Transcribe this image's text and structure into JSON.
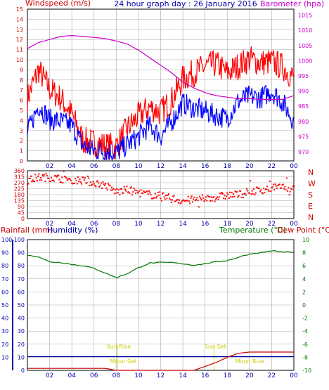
{
  "colors": {
    "wind": "#ff0000",
    "gust": "#ff0000",
    "windavg": "#0000ff",
    "baro": "#cc00cc",
    "dir": "#ff0000",
    "rain": "#cc0000",
    "humidity": "#0000aa",
    "temp": "#007700",
    "dew": "#cc0000",
    "grid": "#aaaaaa",
    "sunline": "#cccc00",
    "sunlabel": "#cccc00"
  },
  "chart_data": [
    {
      "type": "line",
      "title": "24 hour graph day : 26 January 2016",
      "ylabel": "Windspeed (m/s)",
      "y2label": "Barometer (hpa)",
      "ylim": [
        0,
        15
      ],
      "y2lim": [
        967,
        1017
      ],
      "y_ticks": [
        "0",
        "1",
        "2",
        "3",
        "4",
        "5",
        "6",
        "7",
        "8",
        "9",
        "10",
        "11",
        "12",
        "13",
        "14",
        "15"
      ],
      "y2_ticks": [
        "970",
        "975",
        "980",
        "985",
        "990",
        "995",
        "1000",
        "1005",
        "1010",
        "1015"
      ],
      "x_ticks": [
        "02",
        "04",
        "06",
        "08",
        "10",
        "12",
        "14",
        "16",
        "18",
        "20",
        "22",
        "00"
      ],
      "x_hours": [
        0,
        1,
        2,
        3,
        4,
        5,
        6,
        7,
        8,
        9,
        10,
        11,
        12,
        13,
        14,
        15,
        16,
        17,
        18,
        19,
        20,
        21,
        22,
        23,
        24
      ],
      "series": [
        {
          "name": "Gust",
          "axis": "left",
          "values": [
            6.2,
            9.0,
            7.1,
            6.2,
            4.6,
            2.0,
            1.8,
            1.5,
            1.4,
            3.2,
            4.4,
            5.3,
            4.8,
            6.0,
            8.1,
            8.7,
            9.3,
            9.6,
            8.7,
            9.4,
            10.1,
            9.7,
            9.8,
            9.3,
            8.2
          ]
        },
        {
          "name": "Average",
          "axis": "left",
          "values": [
            2.8,
            5.5,
            4.1,
            3.9,
            3.5,
            1.5,
            1.0,
            1.0,
            0.8,
            1.6,
            2.4,
            3.5,
            2.4,
            3.9,
            5.7,
            5.2,
            4.9,
            4.5,
            4.2,
            5.9,
            6.4,
            6.2,
            6.9,
            5.8,
            3.9
          ]
        },
        {
          "name": "Barometer",
          "axis": "right",
          "values": [
            1004.0,
            1006.0,
            1007.0,
            1008.0,
            1008.3,
            1008.0,
            1007.7,
            1007.3,
            1006.5,
            1005.5,
            1003.5,
            1001.0,
            998.5,
            996.0,
            993.0,
            991.0,
            989.5,
            988.5,
            988.0,
            987.5,
            987.5,
            987.3,
            987.2,
            987.3,
            988.5
          ]
        }
      ]
    },
    {
      "type": "scatter",
      "ylabel_letters": [
        "N",
        "W",
        "S",
        "E",
        "N"
      ],
      "ylim": [
        0,
        360
      ],
      "y_ticks": [
        "0",
        "45",
        "90",
        "135",
        "180",
        "225",
        "270",
        "315",
        "360"
      ],
      "x_ticks": [
        "02",
        "04",
        "06",
        "08",
        "10",
        "12",
        "14",
        "16",
        "18",
        "20",
        "22",
        "00"
      ],
      "series": [
        {
          "name": "Direction",
          "x": [
            0,
            1,
            2,
            3,
            4,
            5,
            6,
            7,
            8,
            9,
            10,
            11,
            12,
            13,
            14,
            15,
            16,
            17,
            18,
            19,
            20,
            21,
            22,
            23,
            24
          ],
          "values": [
            285,
            310,
            310,
            300,
            295,
            285,
            270,
            250,
            200,
            215,
            195,
            180,
            170,
            150,
            135,
            140,
            150,
            160,
            175,
            180,
            200,
            215,
            230,
            235,
            230
          ]
        }
      ]
    },
    {
      "type": "line",
      "ylabel_left": "Rainfall (mm)",
      "ylabel_left2": "Humidity (%)",
      "ylabel_right": "Temperature (°C)",
      "ylabel_right2": "Dew Point (°C)",
      "ylim": [
        0,
        100
      ],
      "y2lim": [
        -10,
        10
      ],
      "y_ticks_left": [
        "0",
        "10",
        "20",
        "30",
        "40",
        "50",
        "60",
        "70",
        "80",
        "90",
        "100"
      ],
      "y_ticks_left2": [
        "10",
        "20",
        "30",
        "40",
        "50",
        "60",
        "70",
        "80",
        "90",
        "100"
      ],
      "y_ticks_right": [
        "10",
        "8",
        "6",
        "4",
        "2",
        "0",
        "-2",
        "-4",
        "-6",
        "-8",
        "-10"
      ],
      "x_ticks": [
        "02",
        "04",
        "06",
        "08",
        "10",
        "12",
        "14",
        "16",
        "18",
        "20",
        "22",
        "00"
      ],
      "annotations": [
        {
          "label": "Sun Rise",
          "hour": 8.1
        },
        {
          "label": "Sun Set",
          "hour": 16.8
        },
        {
          "label": "Moon Set",
          "hour": 8.5
        },
        {
          "label": "Moon Rise",
          "hour": 19.9
        }
      ],
      "series": [
        {
          "name": "Temperature",
          "axis": "right",
          "values": [
            7.6,
            7.4,
            6.6,
            6.5,
            6.2,
            6.0,
            5.6,
            4.9,
            4.2,
            4.8,
            5.7,
            6.4,
            6.5,
            6.5,
            6.3,
            6.1,
            6.3,
            6.6,
            6.8,
            7.3,
            7.8,
            8.0,
            8.3,
            8.1,
            8.1
          ]
        },
        {
          "name": "Rainfall",
          "axis": "left",
          "values": [
            1.5,
            1.5,
            1.5,
            1.5,
            1.5,
            1.5,
            1.5,
            1.5,
            0.0,
            0.0,
            0.0,
            0.0,
            0.0,
            0.0,
            0.0,
            0.0,
            3.0,
            6.0,
            10.0,
            13.0,
            14.0,
            14.0,
            14.0,
            14.0,
            14.0
          ]
        },
        {
          "name": "Humidity",
          "axis": "left",
          "values": [
            10.5,
            10.5,
            10.5,
            10.5,
            10.5,
            10.5,
            10.5,
            10.5,
            10.5,
            10.5,
            10.5,
            10.5,
            10.5,
            10.5,
            10.5,
            10.5,
            10.5,
            10.5,
            10.5,
            10.5,
            10.5,
            10.5,
            10.5,
            10.5,
            10.5
          ]
        }
      ]
    }
  ]
}
